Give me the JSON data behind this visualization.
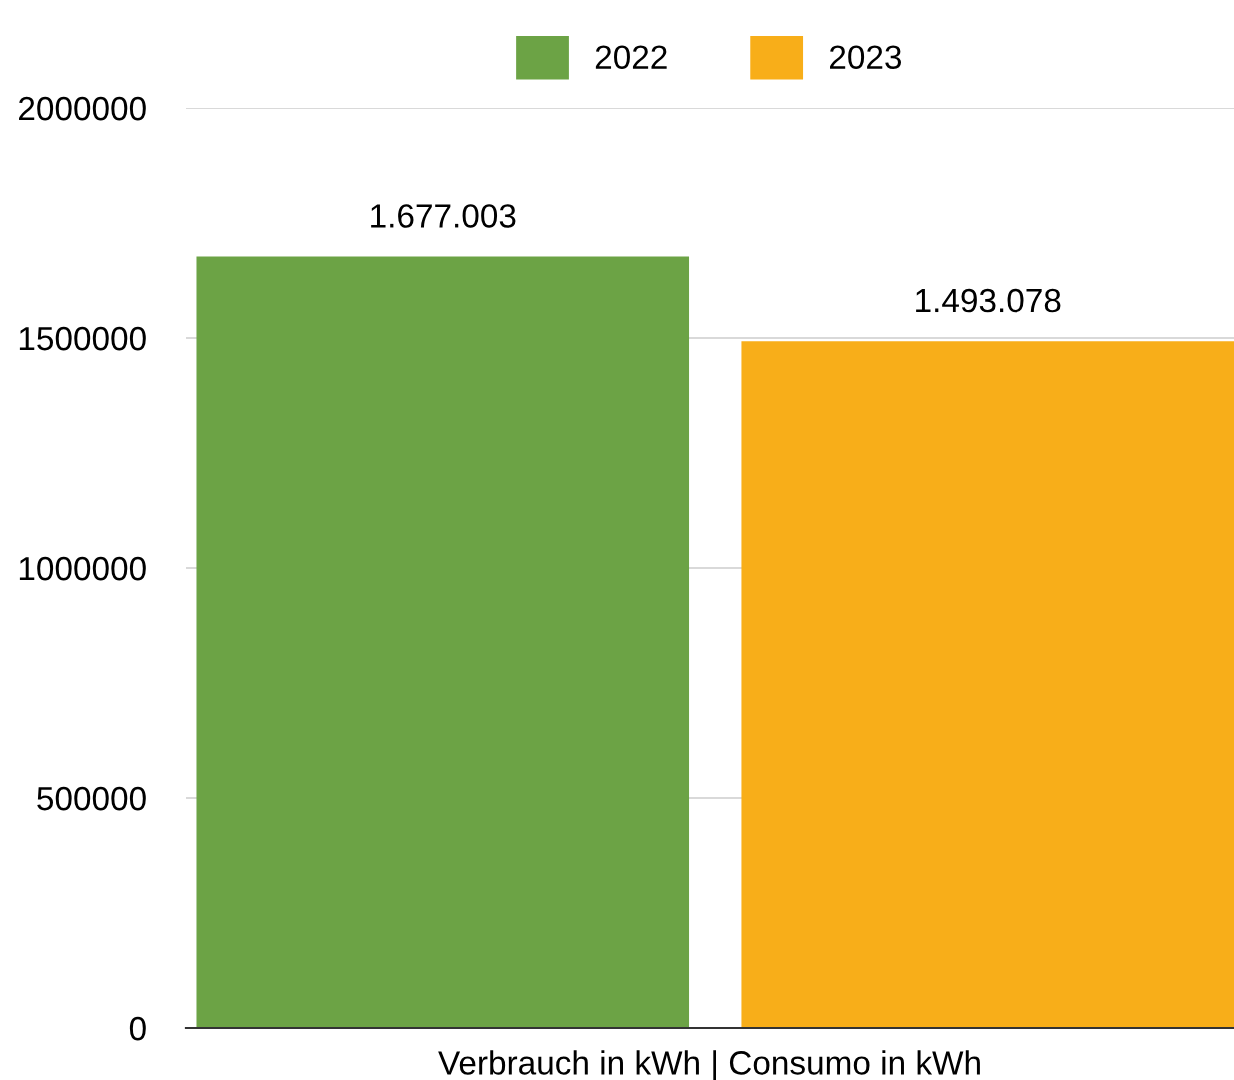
{
  "chart_data": {
    "type": "bar",
    "categories": [
      "Verbrauch in kWh | Consumo in kWh"
    ],
    "series": [
      {
        "name": "2022",
        "color": "#6ca345",
        "values": [
          1677003
        ],
        "value_labels": [
          "1.677.003"
        ]
      },
      {
        "name": "2023",
        "color": "#f8ae19",
        "values": [
          1493078
        ],
        "value_labels": [
          "1.493.078"
        ]
      }
    ],
    "ylim": [
      0,
      2000000
    ],
    "yticks": [
      0,
      500000,
      1000000,
      1500000,
      2000000
    ],
    "grid": "y",
    "legend": "top"
  }
}
